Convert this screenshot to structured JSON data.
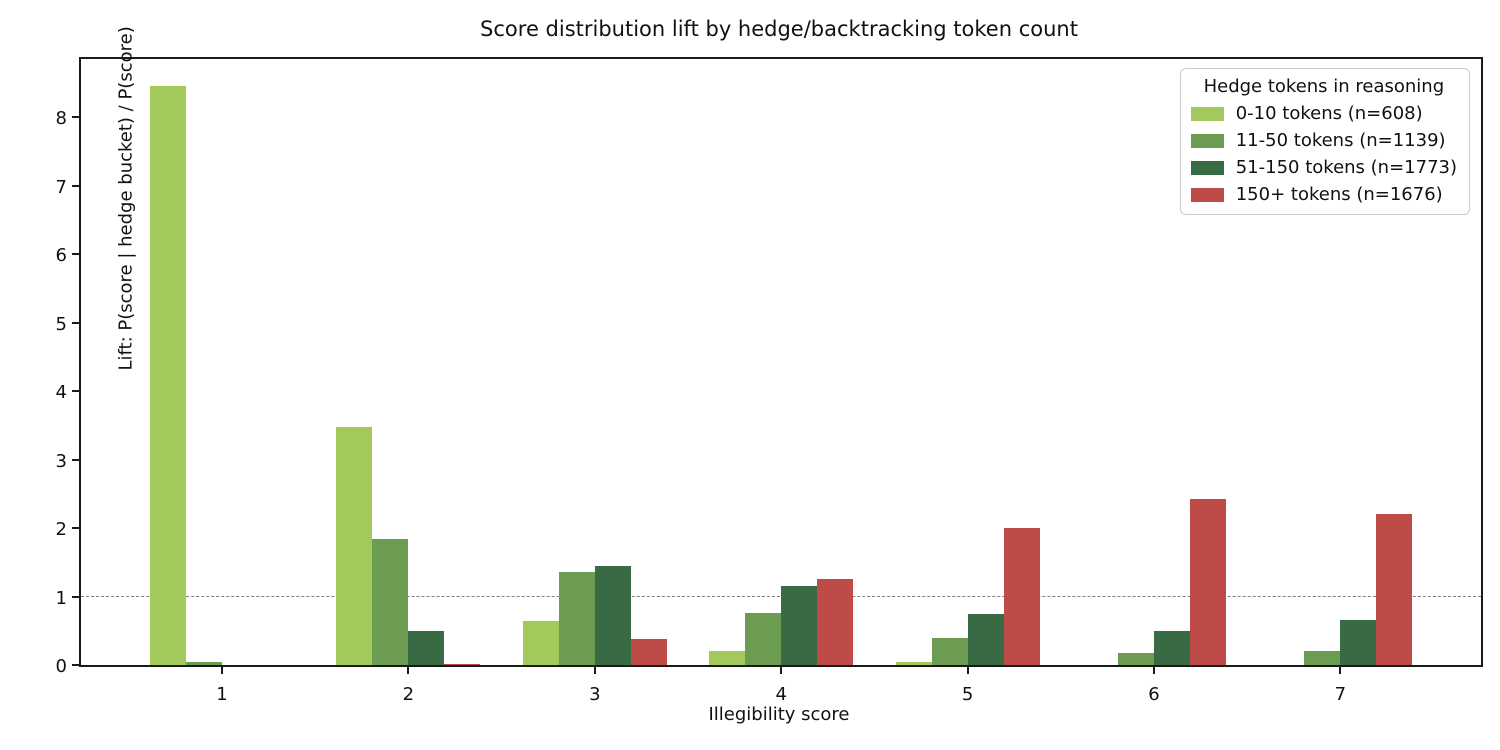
{
  "chart_data": {
    "type": "bar",
    "title": "Score distribution lift by hedge/backtracking token count",
    "xlabel": "Illegibility score",
    "ylabel": "Lift: P(score | hedge bucket) / P(score)",
    "legend_title": "Hedge tokens in reasoning",
    "legend_position": "upper right",
    "grid": false,
    "categories": [
      "1",
      "2",
      "3",
      "4",
      "5",
      "6",
      "7"
    ],
    "series": [
      {
        "name": "0-10 tokens (n=608)",
        "color": "#a3c95c",
        "values": [
          8.45,
          3.47,
          0.65,
          0.2,
          0.04,
          0.0,
          0.0
        ]
      },
      {
        "name": "11-50 tokens (n=1139)",
        "color": "#6b9c52",
        "values": [
          0.04,
          1.84,
          1.36,
          0.76,
          0.4,
          0.17,
          0.2
        ]
      },
      {
        "name": "51-150 tokens (n=1773)",
        "color": "#386b43",
        "values": [
          0.0,
          0.49,
          1.45,
          1.16,
          0.74,
          0.49,
          0.66
        ]
      },
      {
        "name": "150+ tokens (n=1676)",
        "color": "#bf4b48",
        "values": [
          0.0,
          0.02,
          0.38,
          1.25,
          2.0,
          2.43,
          2.21
        ]
      }
    ],
    "yticks": [
      0,
      1,
      2,
      3,
      4,
      5,
      6,
      7,
      8
    ],
    "ylim": [
      0,
      8.85
    ],
    "reference_line": {
      "y": 1,
      "style": "dashed",
      "color": "#7f7f7f"
    }
  }
}
